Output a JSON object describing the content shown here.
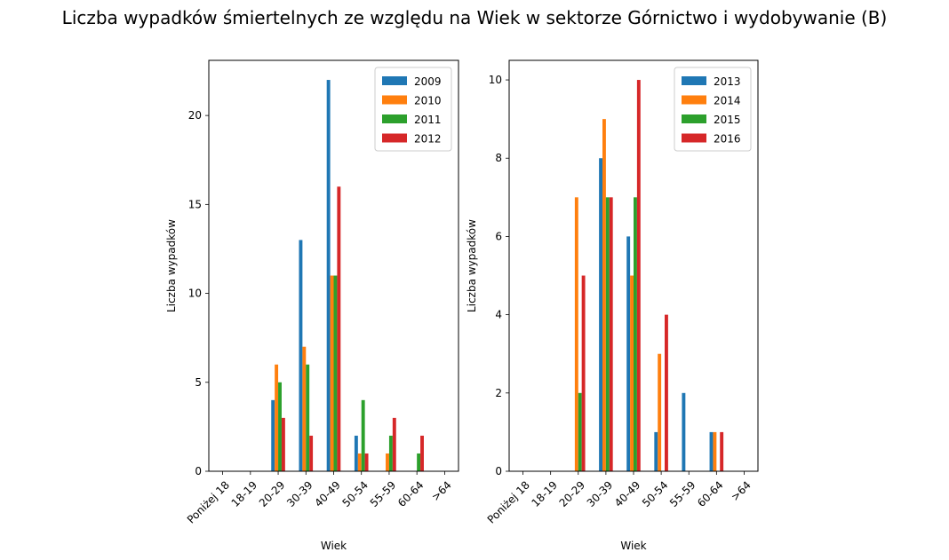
{
  "title": "Liczba wypadków śmiertelnych ze względu na Wiek w sektorze Górnictwo i wydobywanie (B)",
  "chart_data": [
    {
      "type": "bar",
      "categories": [
        "Poniżej 18",
        "18-19",
        "20-29",
        "30-39",
        "40-49",
        "50-54",
        "55-59",
        "60-64",
        ">64"
      ],
      "xlabel": "Wiek",
      "ylabel": "Liczba wypadków",
      "ylim": [
        0,
        23.1
      ],
      "yticks": [
        0,
        5,
        10,
        15,
        20
      ],
      "legend": "top-right",
      "series": [
        {
          "name": "2009",
          "color": "#1f77b4",
          "values": [
            0,
            0,
            4,
            13,
            22,
            2,
            0,
            0,
            0
          ]
        },
        {
          "name": "2010",
          "color": "#ff7f0e",
          "values": [
            0,
            0,
            6,
            7,
            11,
            1,
            1,
            0,
            0
          ]
        },
        {
          "name": "2011",
          "color": "#2ca02c",
          "values": [
            0,
            0,
            5,
            6,
            11,
            4,
            2,
            1,
            0
          ]
        },
        {
          "name": "2012",
          "color": "#d62728",
          "values": [
            0,
            0,
            3,
            2,
            16,
            1,
            3,
            2,
            0
          ]
        }
      ]
    },
    {
      "type": "bar",
      "categories": [
        "Poniżej 18",
        "18-19",
        "20-29",
        "30-39",
        "40-49",
        "50-54",
        "55-59",
        "60-64",
        ">64"
      ],
      "xlabel": "Wiek",
      "ylabel": "Liczba wypadków",
      "ylim": [
        0,
        10.5
      ],
      "yticks": [
        0,
        2,
        4,
        6,
        8,
        10
      ],
      "legend": "top-right",
      "series": [
        {
          "name": "2013",
          "color": "#1f77b4",
          "values": [
            0,
            0,
            0,
            8,
            6,
            1,
            2,
            1,
            0
          ]
        },
        {
          "name": "2014",
          "color": "#ff7f0e",
          "values": [
            0,
            0,
            7,
            9,
            5,
            3,
            0,
            1,
            0
          ]
        },
        {
          "name": "2015",
          "color": "#2ca02c",
          "values": [
            0,
            0,
            2,
            7,
            7,
            0,
            0,
            0,
            0
          ]
        },
        {
          "name": "2016",
          "color": "#d62728",
          "values": [
            0,
            0,
            5,
            7,
            10,
            4,
            0,
            1,
            0
          ]
        }
      ]
    }
  ]
}
